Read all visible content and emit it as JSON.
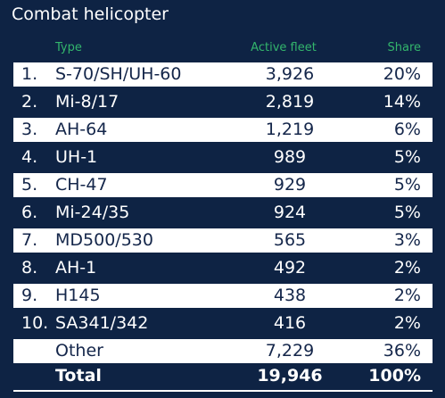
{
  "title": "Combat helicopter",
  "columns": {
    "type": "Type",
    "fleet": "Active fleet",
    "share": "Share"
  },
  "rows": [
    {
      "rank": "1.",
      "type": "S-70/SH/UH-60",
      "fleet": "3,926",
      "share": "20%"
    },
    {
      "rank": "2.",
      "type": "Mi-8/17",
      "fleet": "2,819",
      "share": "14%"
    },
    {
      "rank": "3.",
      "type": "AH-64",
      "fleet": "1,219",
      "share": "6%"
    },
    {
      "rank": "4.",
      "type": "UH-1",
      "fleet": "989",
      "share": "5%"
    },
    {
      "rank": "5.",
      "type": "CH-47",
      "fleet": "929",
      "share": "5%"
    },
    {
      "rank": "6.",
      "type": "Mi-24/35",
      "fleet": "924",
      "share": "5%"
    },
    {
      "rank": "7.",
      "type": "MD500/530",
      "fleet": "565",
      "share": "3%"
    },
    {
      "rank": "8.",
      "type": "AH-1",
      "fleet": "492",
      "share": "2%"
    },
    {
      "rank": "9.",
      "type": "H145",
      "fleet": "438",
      "share": "2%"
    },
    {
      "rank": "10.",
      "type": "SA341/342",
      "fleet": "416",
      "share": "2%"
    },
    {
      "rank": "",
      "type": "Other",
      "fleet": "7,229",
      "share": "36%"
    }
  ],
  "total": {
    "type": "Total",
    "fleet": "19,946",
    "share": "100%"
  }
}
